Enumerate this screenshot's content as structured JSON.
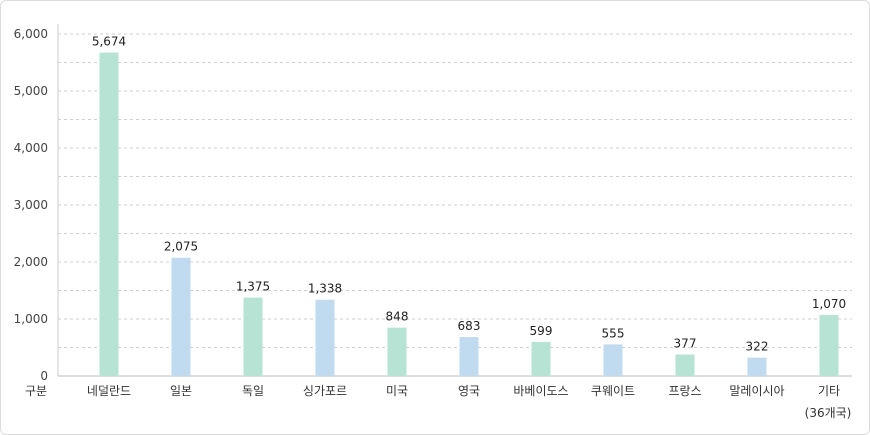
{
  "chart_data": {
    "type": "bar",
    "corner_label": "구분",
    "categories": [
      "네덜란드",
      "일본",
      "독일",
      "싱가포르",
      "미국",
      "영국",
      "바베이도스",
      "쿠웨이트",
      "프랑스",
      "말레이시아",
      "기타"
    ],
    "category_sublabels": [
      "",
      "",
      "",
      "",
      "",
      "",
      "",
      "",
      "",
      "",
      "(36개국)"
    ],
    "values": [
      5674,
      2075,
      1375,
      1338,
      848,
      683,
      599,
      555,
      377,
      322,
      1070
    ],
    "value_labels": [
      "5,674",
      "2,075",
      "1,375",
      "1,338",
      "848",
      "683",
      "599",
      "555",
      "377",
      "322",
      "1,070"
    ],
    "ylim": [
      0,
      6000
    ],
    "yticks": [
      0,
      1000,
      2000,
      3000,
      4000,
      5000,
      6000
    ],
    "ytick_labels": [
      "0",
      "1,000",
      "2,000",
      "3,000",
      "4,000",
      "5,000",
      "6,000"
    ],
    "grid": true,
    "colors": [
      "#b6e3d4",
      "#c0daf0"
    ],
    "legend": null
  }
}
